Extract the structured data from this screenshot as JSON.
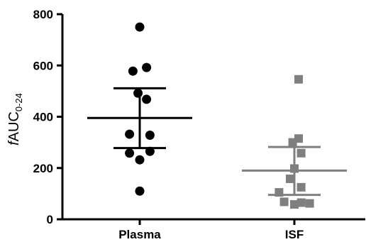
{
  "chart_data": {
    "type": "scatter",
    "ylabel": {
      "italic_prefix": "f",
      "main": "AUC",
      "subscript": "0-24"
    },
    "ylim": [
      0,
      800
    ],
    "yticks": [
      "0",
      "200",
      "400",
      "600",
      "800"
    ],
    "categories": [
      "Plasma",
      "ISF"
    ],
    "grid": false,
    "legend": "none",
    "series": [
      {
        "category": "Plasma",
        "marker": "circle",
        "color": "#000000",
        "values": [
          750,
          592,
          578,
          492,
          468,
          332,
          328,
          258,
          265,
          232,
          110
        ],
        "jitter": [
          0,
          0.08,
          -0.08,
          -0.02,
          0.08,
          -0.12,
          0.12,
          -0.12,
          0.12,
          0,
          0
        ],
        "mean": 395,
        "error_bar": [
          278,
          511
        ]
      },
      {
        "category": "ISF",
        "marker": "square",
        "color": "#7f7f7f",
        "values": [
          546,
          315,
          300,
          258,
          198,
          158,
          125,
          105,
          68,
          62,
          58,
          65
        ],
        "jitter": [
          0.05,
          0.05,
          -0.02,
          0.08,
          0,
          -0.05,
          0.08,
          -0.18,
          -0.12,
          0.18,
          0,
          0.08
        ],
        "mean": 190,
        "error_bar": [
          95,
          282
        ]
      }
    ]
  }
}
